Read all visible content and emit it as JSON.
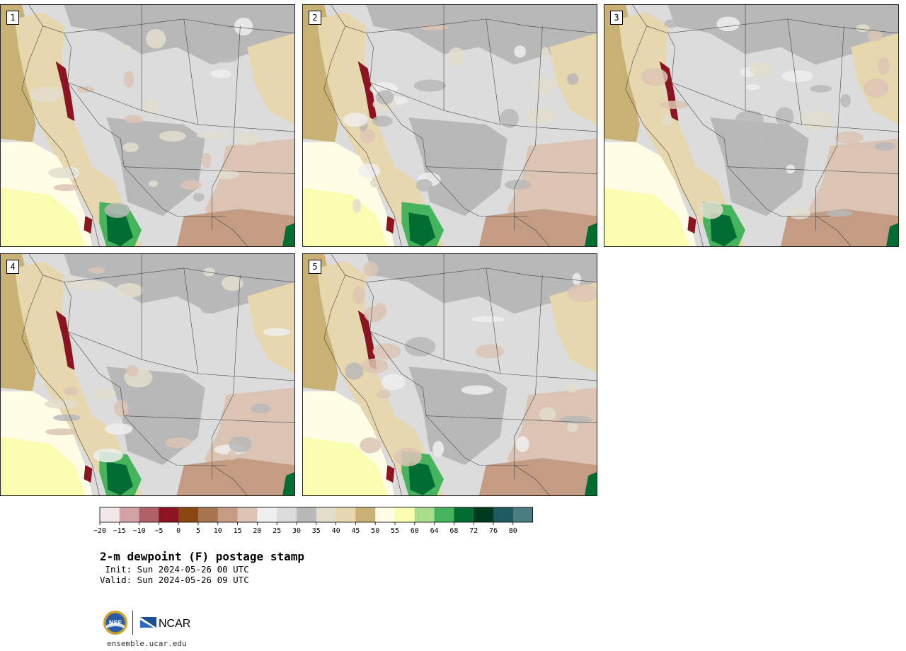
{
  "members": [
    {
      "label": "1"
    },
    {
      "label": "2"
    },
    {
      "label": "3"
    },
    {
      "label": "4"
    },
    {
      "label": "5"
    }
  ],
  "colorbar": {
    "colors": [
      "#f3e7e8",
      "#d4a3a7",
      "#b06068",
      "#8b1420",
      "#8a4710",
      "#a87450",
      "#c49c84",
      "#dcc4b4",
      "#efefef",
      "#dcdcdc",
      "#b8b8b8",
      "#e2ddcc",
      "#e6d7ae",
      "#c9b073",
      "#fffde5",
      "#fafcb0",
      "#a8dd8e",
      "#46b35d",
      "#006d33",
      "#003a1e",
      "#1c5a5f",
      "#4a7c82"
    ],
    "ticks": [
      "−20",
      "−15",
      "−10",
      "−5",
      "0",
      "5",
      "10",
      "15",
      "20",
      "25",
      "30",
      "35",
      "40",
      "45",
      "50",
      "55",
      "60",
      "64",
      "68",
      "72",
      "76",
      "80"
    ]
  },
  "title": "2-m dewpoint (F) postage stamp",
  "init_line": " Init: Sun 2024-05-26 00 UTC",
  "valid_line": "Valid: Sun 2024-05-26 09 UTC",
  "logos": {
    "nsf": "NSF",
    "ncar": "NCAR",
    "url": "ensemble.ucar.edu"
  }
}
